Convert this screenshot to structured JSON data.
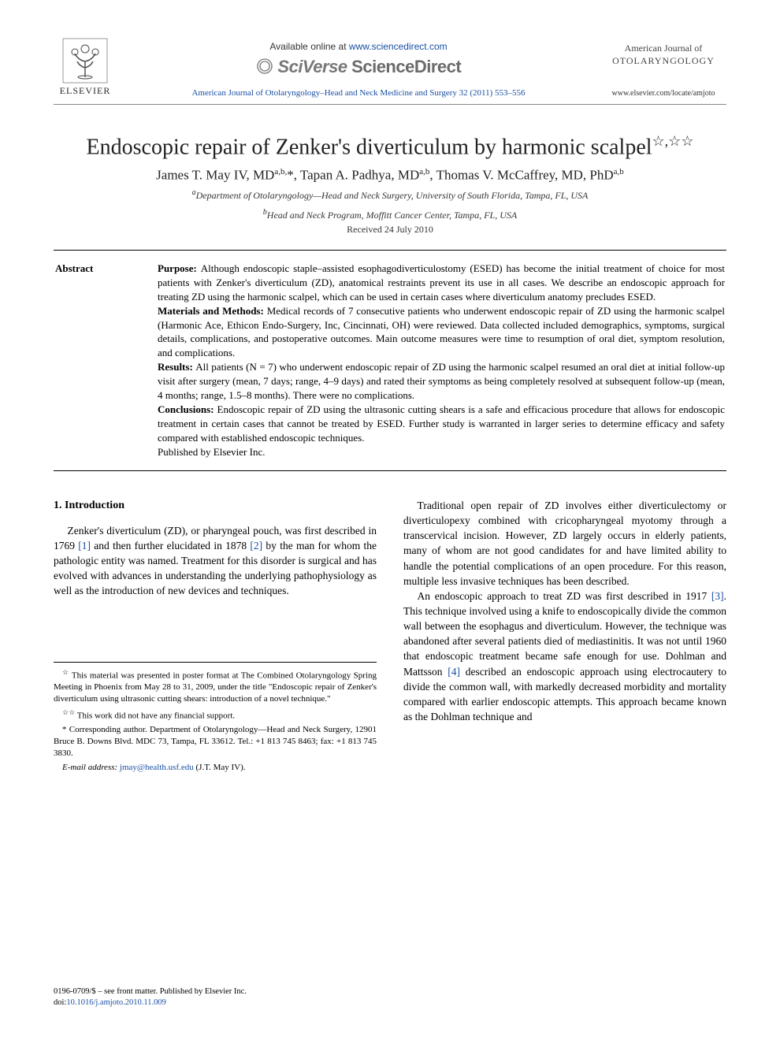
{
  "header": {
    "publisher_logo_label": "ELSEVIER",
    "available_prefix": "Available online at ",
    "available_url": "www.sciencedirect.com",
    "brand_sv": "SciVerse",
    "brand_sd": " ScienceDirect",
    "citation": "American Journal of Otolaryngology–Head and Neck Medicine and Surgery 32 (2011) 553–556",
    "journal_line1": "American Journal of",
    "journal_line2": "OTOLARYNGOLOGY",
    "journal_url": "www.elsevier.com/locate/amjoto"
  },
  "title": {
    "text": "Endoscopic repair of Zenker's diverticulum by harmonic scalpel",
    "marks": "☆,☆☆"
  },
  "authors_html": "James T. May IV, MD<sup>a,b,</sup>*, Tapan A. Padhya, MD<sup>a,b</sup>, Thomas V. McCaffrey, MD, PhD<sup>a,b</sup>",
  "affiliations": {
    "a": "Department of Otolaryngology—Head and Neck Surgery, University of South Florida, Tampa, FL, USA",
    "b": "Head and Neck Program, Moffitt Cancer Center, Tampa, FL, USA"
  },
  "received": "Received 24 July 2010",
  "abstract": {
    "label": "Abstract",
    "purpose_head": "Purpose: ",
    "purpose": "Although endoscopic staple–assisted esophagodiverticulostomy (ESED) has become the initial treatment of choice for most patients with Zenker's diverticulum (ZD), anatomical restraints prevent its use in all cases. We describe an endoscopic approach for treating ZD using the harmonic scalpel, which can be used in certain cases where diverticulum anatomy precludes ESED.",
    "methods_head": "Materials and Methods: ",
    "methods": "Medical records of 7 consecutive patients who underwent endoscopic repair of ZD using the harmonic scalpel (Harmonic Ace, Ethicon Endo-Surgery, Inc, Cincinnati, OH) were reviewed. Data collected included demographics, symptoms, surgical details, complications, and postoperative outcomes. Main outcome measures were time to resumption of oral diet, symptom resolution, and complications.",
    "results_head": "Results: ",
    "results": "All patients (N = 7) who underwent endoscopic repair of ZD using the harmonic scalpel resumed an oral diet at initial follow-up visit after surgery (mean, 7 days; range, 4–9 days) and rated their symptoms as being completely resolved at subsequent follow-up (mean, 4 months; range, 1.5–8 months). There were no complications.",
    "conclusions_head": "Conclusions: ",
    "conclusions": "Endoscopic repair of ZD using the ultrasonic cutting shears is a safe and efficacious procedure that allows for endoscopic treatment in certain cases that cannot be treated by ESED. Further study is warranted in larger series to determine efficacy and safety compared with established endoscopic techniques.",
    "publisher_line": "Published by Elsevier Inc."
  },
  "body": {
    "section1_head": "1. Introduction",
    "p1a": "Zenker's diverticulum (ZD), or pharyngeal pouch, was first described in 1769 ",
    "ref1": "[1]",
    "p1b": " and then further elucidated in 1878 ",
    "ref2": "[2]",
    "p1c": " by the man for whom the pathologic entity was named. Treatment for this disorder is surgical and has evolved with advances in understanding the underlying pathophysiology as well as the introduction of new devices and techniques.",
    "p2": "Traditional open repair of ZD involves either diverticulectomy or diverticulopexy combined with cricopharyngeal myotomy through a transcervical incision. However, ZD largely occurs in elderly patients, many of whom are not good candidates for and have limited ability to handle the potential complications of an open procedure. For this reason, multiple less invasive techniques has been described.",
    "p3a": "An endoscopic approach to treat ZD was first described in 1917 ",
    "ref3": "[3]",
    "p3b": ". This technique involved using a knife to endoscopically divide the common wall between the esophagus and diverticulum. However, the technique was abandoned after several patients died of mediastinitis. It was not until 1960 that endoscopic treatment became safe enough for use. Dohlman and Mattsson ",
    "ref4": "[4]",
    "p3c": " described an endoscopic approach using electrocautery to divide the common wall, with markedly decreased morbidity and mortality compared with earlier endoscopic attempts. This approach became known as the Dohlman technique and"
  },
  "footnotes": {
    "n1_mark": "☆ ",
    "n1": "This material was presented in poster format at The Combined Otolaryngology Spring Meeting in Phoenix from May 28 to 31, 2009, under the title \"Endoscopic repair of Zenker's diverticulum using ultrasonic cutting shears: introduction of a novel technique.\"",
    "n2_mark": "☆☆ ",
    "n2": "This work did not have any financial support.",
    "corr_mark": "* ",
    "corr": "Corresponding author. Department of Otolaryngology—Head and Neck Surgery, 12901 Bruce B. Downs Blvd. MDC 73, Tampa, FL 33612. Tel.: +1 813 745 8463; fax: +1 813 745 3830.",
    "email_label": "E-mail address: ",
    "email": "jmay@health.usf.edu",
    "email_suffix": " (J.T. May IV)."
  },
  "bottom": {
    "copyright": "0196-0709/$ – see front matter. Published by Elsevier Inc.",
    "doi_prefix": "doi:",
    "doi": "10.1016/j.amjoto.2010.11.009"
  },
  "colors": {
    "link": "#1a4fa3",
    "text": "#000000",
    "brand_gray": "#6a6a6a",
    "rule": "#000000"
  }
}
